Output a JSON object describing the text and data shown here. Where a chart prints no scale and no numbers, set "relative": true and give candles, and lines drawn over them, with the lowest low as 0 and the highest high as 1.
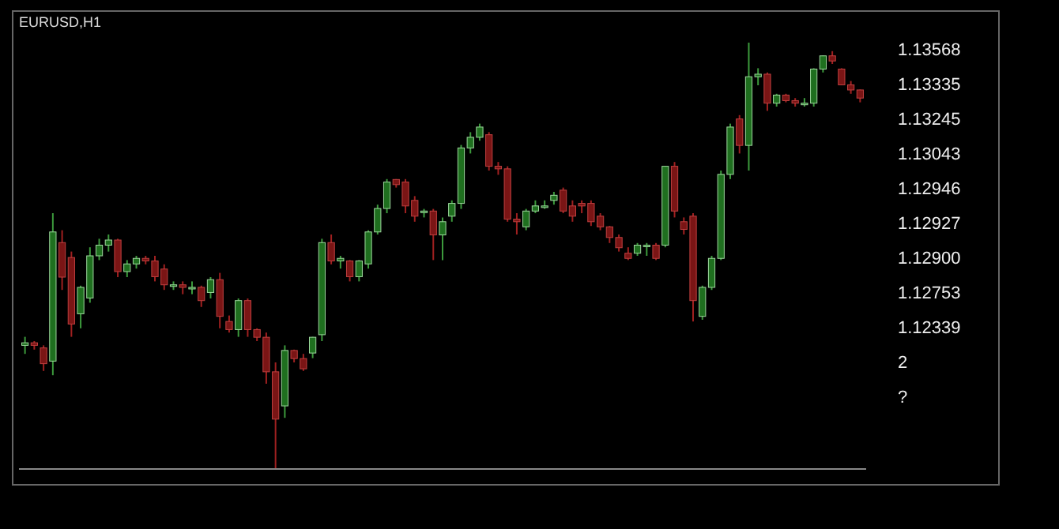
{
  "chart_data": {
    "type": "candlestick",
    "title": "EURUSD,H1",
    "relative": true,
    "categories": [
      null,
      null,
      null,
      null,
      null,
      null,
      null,
      null,
      null,
      null,
      null,
      null,
      null,
      null,
      null,
      null,
      null,
      null,
      null,
      null,
      null,
      null,
      null,
      null,
      null,
      null,
      null,
      null,
      null,
      null,
      null,
      null,
      null,
      null,
      null,
      null,
      null,
      null,
      null,
      null,
      null,
      null,
      null,
      null,
      null,
      null,
      null,
      null,
      null,
      null,
      null,
      null,
      null,
      null,
      null,
      null,
      null,
      null,
      null,
      null,
      null,
      null,
      null,
      null,
      null,
      null,
      null,
      null,
      null,
      null,
      null,
      null,
      null,
      null,
      null,
      null,
      null,
      null,
      null,
      null,
      null,
      null,
      null,
      null,
      null,
      null,
      null,
      null,
      null,
      null,
      null
    ],
    "ohlc": [
      [
        0.29,
        0.31,
        0.27,
        0.296
      ],
      [
        0.296,
        0.3,
        0.28,
        0.29
      ],
      [
        0.284,
        0.29,
        0.23,
        0.247
      ],
      [
        0.253,
        0.6,
        0.22,
        0.556
      ],
      [
        0.531,
        0.56,
        0.42,
        0.45
      ],
      [
        0.496,
        0.51,
        0.31,
        0.34
      ],
      [
        0.364,
        0.43,
        0.33,
        0.426
      ],
      [
        0.401,
        0.52,
        0.39,
        0.5
      ],
      [
        0.5,
        0.54,
        0.49,
        0.525
      ],
      [
        0.525,
        0.55,
        0.51,
        0.537
      ],
      [
        0.537,
        0.54,
        0.45,
        0.463
      ],
      [
        0.463,
        0.49,
        0.45,
        0.481
      ],
      [
        0.481,
        0.5,
        0.47,
        0.494
      ],
      [
        0.494,
        0.5,
        0.48,
        0.488
      ],
      [
        0.488,
        0.5,
        0.44,
        0.451
      ],
      [
        0.469,
        0.48,
        0.42,
        0.432
      ],
      [
        0.432,
        0.44,
        0.42,
        0.432
      ],
      [
        0.432,
        0.44,
        0.41,
        0.426
      ],
      [
        0.426,
        0.44,
        0.41,
        0.426
      ],
      [
        0.426,
        0.43,
        0.38,
        0.395
      ],
      [
        0.414,
        0.45,
        0.4,
        0.444
      ],
      [
        0.444,
        0.46,
        0.33,
        0.358
      ],
      [
        0.346,
        0.36,
        0.32,
        0.327
      ],
      [
        0.327,
        0.4,
        0.31,
        0.395
      ],
      [
        0.395,
        0.4,
        0.31,
        0.327
      ],
      [
        0.327,
        0.33,
        0.3,
        0.309
      ],
      [
        0.309,
        0.32,
        0.2,
        0.228
      ],
      [
        0.228,
        0.25,
        0,
        0.117
      ],
      [
        0.148,
        0.29,
        0.12,
        0.278
      ],
      [
        0.278,
        0.28,
        0.25,
        0.259
      ],
      [
        0.259,
        0.27,
        0.23,
        0.235
      ],
      [
        0.272,
        0.31,
        0.26,
        0.309
      ],
      [
        0.315,
        0.54,
        0.3,
        0.531
      ],
      [
        0.531,
        0.55,
        0.48,
        0.488
      ],
      [
        0.488,
        0.5,
        0.47,
        0.494
      ],
      [
        0.488,
        0.49,
        0.44,
        0.451
      ],
      [
        0.451,
        0.49,
        0.44,
        0.488
      ],
      [
        0.481,
        0.56,
        0.47,
        0.556
      ],
      [
        0.556,
        0.62,
        0.55,
        0.611
      ],
      [
        0.611,
        0.68,
        0.6,
        0.673
      ],
      [
        0.679,
        0.68,
        0.66,
        0.667
      ],
      [
        0.673,
        0.68,
        0.6,
        0.617
      ],
      [
        0.63,
        0.64,
        0.58,
        0.593
      ],
      [
        0.605,
        0.61,
        0.59,
        0.605
      ],
      [
        0.605,
        0.61,
        0.49,
        0.549
      ],
      [
        0.549,
        0.59,
        0.49,
        0.58
      ],
      [
        0.593,
        0.63,
        0.58,
        0.623
      ],
      [
        0.623,
        0.76,
        0.61,
        0.753
      ],
      [
        0.753,
        0.79,
        0.74,
        0.778
      ],
      [
        0.778,
        0.81,
        0.77,
        0.802
      ],
      [
        0.784,
        0.79,
        0.7,
        0.71
      ],
      [
        0.71,
        0.72,
        0.69,
        0.704
      ],
      [
        0.704,
        0.71,
        0.58,
        0.586
      ],
      [
        0.586,
        0.6,
        0.55,
        0.58
      ],
      [
        0.568,
        0.61,
        0.56,
        0.605
      ],
      [
        0.605,
        0.63,
        0.6,
        0.617
      ],
      [
        0.617,
        0.63,
        0.61,
        0.617
      ],
      [
        0.63,
        0.65,
        0.62,
        0.642
      ],
      [
        0.654,
        0.66,
        0.6,
        0.605
      ],
      [
        0.617,
        0.63,
        0.58,
        0.593
      ],
      [
        0.623,
        0.63,
        0.6,
        0.617
      ],
      [
        0.623,
        0.63,
        0.57,
        0.58
      ],
      [
        0.593,
        0.6,
        0.56,
        0.568
      ],
      [
        0.568,
        0.57,
        0.53,
        0.543
      ],
      [
        0.543,
        0.55,
        0.51,
        0.519
      ],
      [
        0.506,
        0.52,
        0.49,
        0.494
      ],
      [
        0.506,
        0.53,
        0.5,
        0.525
      ],
      [
        0.525,
        0.53,
        0.5,
        0.525
      ],
      [
        0.525,
        0.53,
        0.49,
        0.494
      ],
      [
        0.525,
        0.71,
        0.52,
        0.71
      ],
      [
        0.71,
        0.72,
        0.59,
        0.605
      ],
      [
        0.58,
        0.59,
        0.55,
        0.562
      ],
      [
        0.593,
        0.6,
        0.346,
        0.395
      ],
      [
        0.358,
        0.43,
        0.35,
        0.426
      ],
      [
        0.426,
        0.5,
        0.42,
        0.494
      ],
      [
        0.494,
        0.7,
        0.49,
        0.691
      ],
      [
        0.691,
        0.81,
        0.68,
        0.802
      ],
      [
        0.821,
        0.83,
        0.74,
        0.759
      ],
      [
        0.759,
        1,
        0.7,
        0.92
      ],
      [
        0.92,
        0.94,
        0.9,
        0.926
      ],
      [
        0.926,
        0.93,
        0.84,
        0.858
      ],
      [
        0.858,
        0.88,
        0.85,
        0.877
      ],
      [
        0.877,
        0.88,
        0.86,
        0.864
      ],
      [
        0.864,
        0.87,
        0.85,
        0.858
      ],
      [
        0.858,
        0.87,
        0.85,
        0.858
      ],
      [
        0.858,
        0.94,
        0.85,
        0.938
      ],
      [
        0.938,
        0.97,
        0.93,
        0.969
      ],
      [
        0.969,
        0.98,
        0.95,
        0.957
      ],
      [
        0.938,
        0.94,
        0.9,
        0.901
      ],
      [
        0.901,
        0.91,
        0.88,
        0.889
      ],
      [
        0.889,
        0.89,
        0.86,
        0.87
      ]
    ],
    "annotations": [
      "1.13568",
      "1.13335",
      "1.13245",
      "1.13043",
      "1.12946",
      "1.12927",
      "1.12900",
      "1.12753",
      "1.12339",
      "2",
      "?"
    ]
  }
}
